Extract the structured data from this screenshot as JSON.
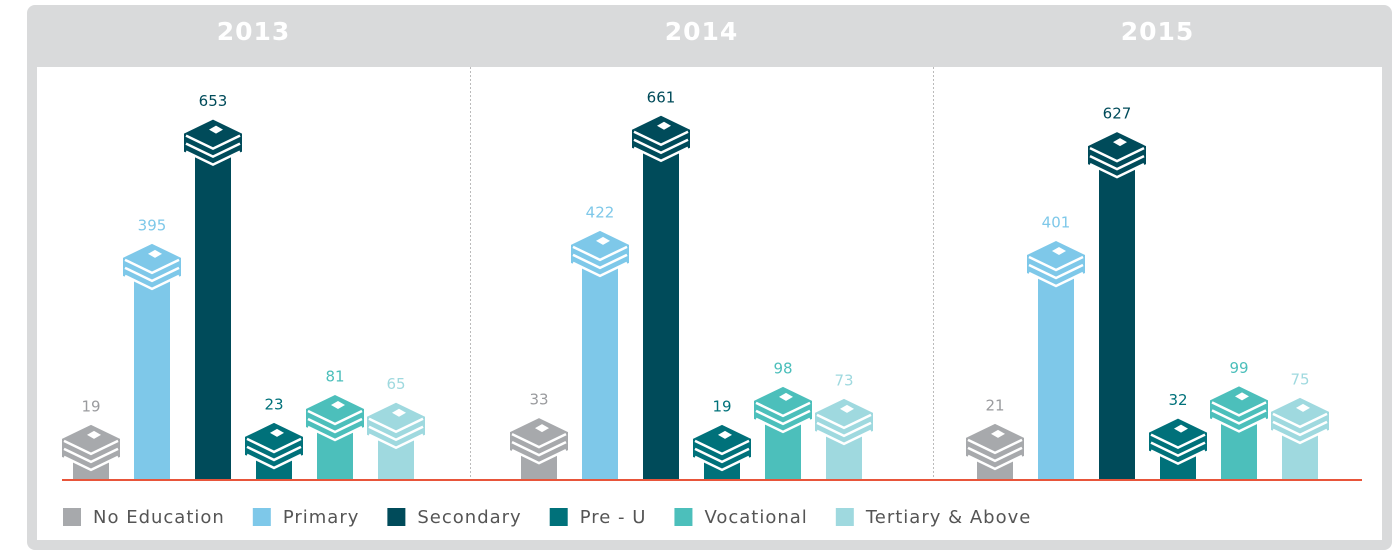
{
  "chart_data": {
    "type": "bar",
    "categories": [
      "2013",
      "2014",
      "2015"
    ],
    "series": [
      {
        "name": "No Education",
        "color": "#a7a9ac",
        "values": [
          19,
          33,
          21
        ]
      },
      {
        "name": "Primary",
        "color": "#7ec8e9",
        "values": [
          395,
          422,
          401
        ]
      },
      {
        "name": "Secondary",
        "color": "#004b5a",
        "values": [
          653,
          661,
          627
        ]
      },
      {
        "name": "Pre - U",
        "color": "#00717a",
        "values": [
          23,
          19,
          32
        ]
      },
      {
        "name": "Vocational",
        "color": "#4cbfbb",
        "values": [
          81,
          98,
          99
        ]
      },
      {
        "name": "Tertiary & Above",
        "color": "#9fd9df",
        "values": [
          65,
          73,
          75
        ]
      }
    ],
    "ylim": [
      0,
      700
    ],
    "legend": "bottom-left"
  }
}
